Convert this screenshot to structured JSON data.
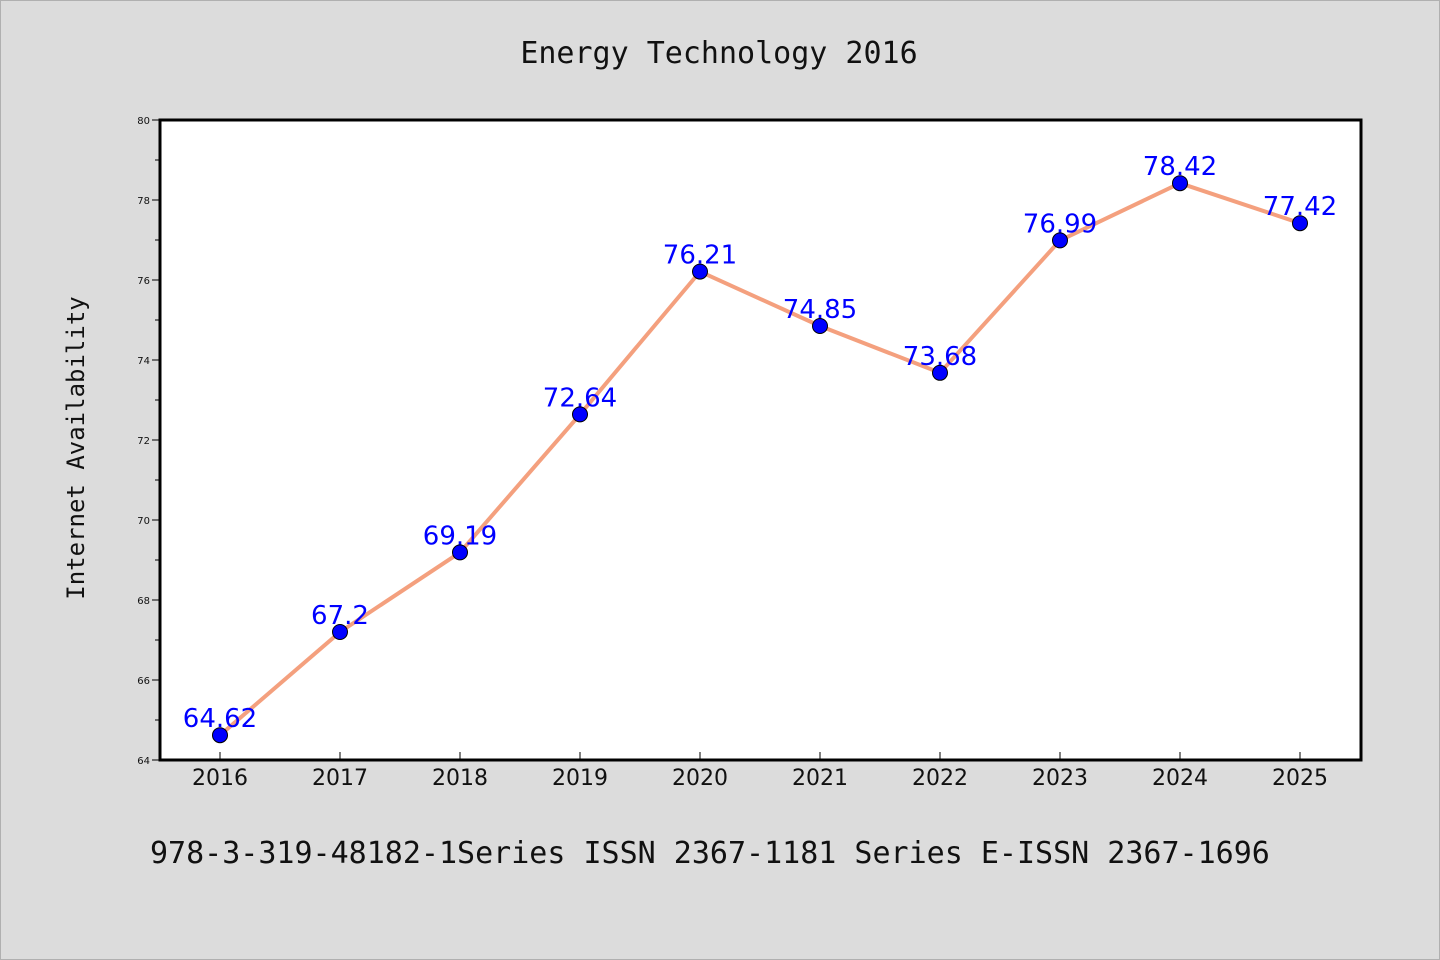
{
  "chart_data": {
    "type": "line",
    "title": "Energy Technology 2016",
    "xlabel": "",
    "ylabel": "Internet Availability",
    "categories": [
      "2016",
      "2017",
      "2018",
      "2019",
      "2020",
      "2021",
      "2022",
      "2023",
      "2024",
      "2025"
    ],
    "series": [
      {
        "values": [
          64.62,
          67.2,
          69.19,
          72.64,
          76.21,
          74.85,
          73.68,
          76.99,
          78.42,
          77.42
        ],
        "labels": [
          "64.62",
          "67.2",
          "69.19",
          "72.64",
          "76.21",
          "74.85",
          "73.68",
          "76.99",
          "78.42",
          "77.42"
        ]
      }
    ],
    "ylim": [
      64,
      80
    ],
    "yticks": [
      "64",
      "66",
      "68",
      "70",
      "72",
      "74",
      "76",
      "78",
      "80"
    ],
    "grid": false,
    "colors": {
      "line": "#f4a07e",
      "marker": "#0000ff",
      "label": "#0000ff",
      "background": "#dcdcdc",
      "plot_bg": "#ffffff"
    }
  },
  "footer": {
    "text": "978-3-319-48182-1Series ISSN 2367-1181 Series E-ISSN 2367-1696"
  }
}
